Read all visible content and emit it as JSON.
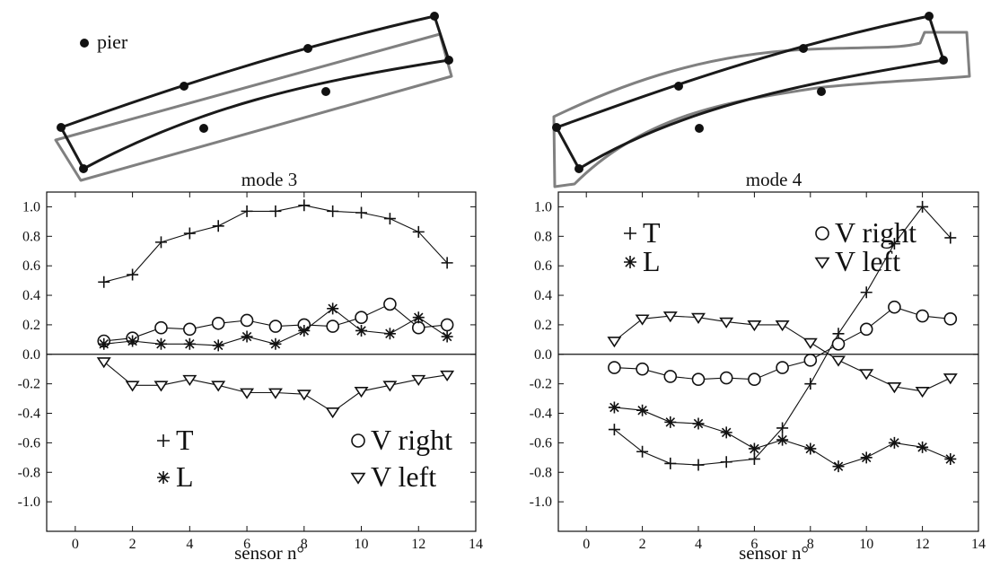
{
  "figure": {
    "pier_label": "pier",
    "panels": [
      {
        "title": "mode 3",
        "xlabel": "sensor n°"
      },
      {
        "title": "mode 4",
        "xlabel": "sensor n°"
      }
    ]
  },
  "chart_data": [
    {
      "type": "line",
      "title": "mode 3",
      "xlabel": "sensor n°",
      "ylabel": "",
      "xlim": [
        -1,
        14
      ],
      "ylim": [
        -1.2,
        1.1
      ],
      "x_ticks": [
        0,
        2,
        4,
        6,
        8,
        10,
        12,
        14
      ],
      "y_ticks": [
        1.0,
        0.8,
        0.6,
        0.4,
        0.2,
        0.0,
        -0.2,
        -0.4,
        -0.6,
        -0.8,
        -1.0
      ],
      "y_tick_labels": [
        "1.0",
        "0.8",
        "0.6",
        "0.4",
        "0.2",
        "0.0",
        "-0.2",
        "-0.4",
        "-0.6",
        "-0.8",
        "-1.0"
      ],
      "x": [
        1,
        2,
        3,
        4,
        5,
        6,
        7,
        8,
        9,
        10,
        11,
        12,
        13
      ],
      "series": [
        {
          "name": "T",
          "marker": "plus",
          "values": [
            0.49,
            0.54,
            0.76,
            0.82,
            0.87,
            0.97,
            0.97,
            1.01,
            0.97,
            0.96,
            0.92,
            0.83,
            0.62
          ]
        },
        {
          "name": "V right",
          "marker": "circle",
          "values": [
            0.09,
            0.11,
            0.18,
            0.17,
            0.21,
            0.23,
            0.19,
            0.2,
            0.19,
            0.25,
            0.34,
            0.18,
            0.2
          ]
        },
        {
          "name": "L",
          "marker": "asterisk",
          "values": [
            0.07,
            0.09,
            0.07,
            0.07,
            0.06,
            0.12,
            0.07,
            0.16,
            0.31,
            0.16,
            0.14,
            0.25,
            0.12
          ]
        },
        {
          "name": "V left",
          "marker": "triangle-down",
          "values": [
            -0.05,
            -0.21,
            -0.21,
            -0.17,
            -0.21,
            -0.26,
            -0.26,
            -0.27,
            -0.39,
            -0.25,
            -0.21,
            -0.17,
            -0.14
          ]
        }
      ],
      "legend": [
        {
          "name": "T",
          "marker": "plus"
        },
        {
          "name": "V right",
          "marker": "circle"
        },
        {
          "name": "L",
          "marker": "asterisk"
        },
        {
          "name": "V left",
          "marker": "triangle-down"
        }
      ],
      "legend_position": "lower-center",
      "zero_line": true
    },
    {
      "type": "line",
      "title": "mode 4",
      "xlabel": "sensor n°",
      "ylabel": "",
      "xlim": [
        -1,
        14
      ],
      "ylim": [
        -1.2,
        1.1
      ],
      "x_ticks": [
        0,
        2,
        4,
        6,
        8,
        10,
        12,
        14
      ],
      "y_ticks": [
        1.0,
        0.8,
        0.6,
        0.4,
        0.2,
        0.0,
        -0.2,
        -0.4,
        -0.6,
        -0.8,
        -1.0
      ],
      "y_tick_labels": [
        "1.0",
        "0.8",
        "0.6",
        "0.4",
        "0.2",
        "0.0",
        "-0.2",
        "-0.4",
        "-0.6",
        "-0.8",
        "-1.0"
      ],
      "x": [
        1,
        2,
        3,
        4,
        5,
        6,
        7,
        8,
        9,
        10,
        11,
        12,
        13
      ],
      "series": [
        {
          "name": "T",
          "marker": "plus",
          "values": [
            -0.51,
            -0.66,
            -0.74,
            -0.75,
            -0.73,
            -0.71,
            -0.5,
            -0.2,
            0.14,
            0.42,
            0.75,
            1.0,
            0.79
          ]
        },
        {
          "name": "V right",
          "marker": "circle",
          "values": [
            -0.09,
            -0.1,
            -0.15,
            -0.17,
            -0.16,
            -0.17,
            -0.09,
            -0.04,
            0.07,
            0.17,
            0.32,
            0.26,
            0.24
          ]
        },
        {
          "name": "L",
          "marker": "asterisk",
          "values": [
            -0.36,
            -0.38,
            -0.46,
            -0.47,
            -0.53,
            -0.64,
            -0.58,
            -0.64,
            -0.76,
            -0.7,
            -0.6,
            -0.63,
            -0.71
          ]
        },
        {
          "name": "V left",
          "marker": "triangle-down",
          "values": [
            0.09,
            0.24,
            0.26,
            0.25,
            0.22,
            0.2,
            0.2,
            0.08,
            -0.04,
            -0.13,
            -0.22,
            -0.25,
            -0.16
          ]
        }
      ],
      "legend": [
        {
          "name": "T",
          "marker": "plus"
        },
        {
          "name": "V right",
          "marker": "circle"
        },
        {
          "name": "L",
          "marker": "asterisk"
        },
        {
          "name": "V left",
          "marker": "triangle-down"
        }
      ],
      "legend_position": "upper-left",
      "zero_line": true
    }
  ]
}
